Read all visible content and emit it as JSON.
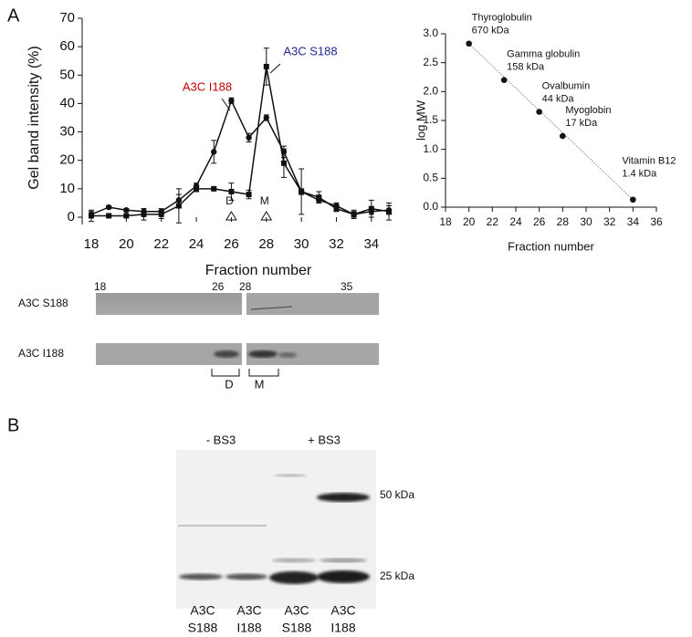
{
  "panels": {
    "a": "A",
    "b": "B"
  },
  "chart_data": [
    {
      "type": "line",
      "x": [
        18,
        19,
        20,
        21,
        22,
        23,
        24,
        25,
        26,
        27,
        28,
        29,
        30,
        31,
        32,
        33,
        34,
        35
      ],
      "series": [
        {
          "name": "A3C I188",
          "color": "#111111",
          "marker": "circle",
          "values": [
            1,
            3.5,
            2.5,
            2,
            2,
            6,
            11,
            23,
            41,
            28,
            35,
            23,
            9,
            6,
            4,
            1,
            2,
            2.5
          ],
          "errors": [
            1,
            0.5,
            0.5,
            1,
            1,
            2,
            1,
            4,
            1,
            1.5,
            1,
            2,
            1,
            1,
            1,
            1,
            1,
            1.5
          ]
        },
        {
          "name": "A3C S188",
          "color": "#111111",
          "marker": "square",
          "values": [
            0.5,
            0.5,
            0.5,
            1,
            1,
            4,
            10,
            10,
            9,
            8,
            53,
            19,
            9,
            7,
            3,
            1,
            3,
            2
          ],
          "errors": [
            2,
            0.5,
            0.5,
            2,
            1.5,
            6,
            1,
            0.5,
            3,
            1.5,
            6.5,
            5,
            8,
            2,
            1,
            1.5,
            3,
            3
          ]
        }
      ],
      "annotations": [
        {
          "text": "A3C I188",
          "color": "#c00000"
        },
        {
          "text": "A3C S188",
          "color": "#1f2a8f"
        }
      ],
      "markers": [
        {
          "text": "D",
          "x": 26
        },
        {
          "text": "M",
          "x": 28
        }
      ],
      "xlabel": "Fraction number",
      "ylabel": "Gel band intensity (%)",
      "xlim": [
        18,
        35
      ],
      "xticks": [
        18,
        20,
        22,
        24,
        26,
        28,
        30,
        32,
        34
      ],
      "ylim": [
        0,
        70
      ],
      "yticks": [
        0,
        10,
        20,
        30,
        40,
        50,
        60,
        70
      ]
    },
    {
      "type": "scatter",
      "x": [
        20,
        23,
        26,
        28,
        34
      ],
      "values": [
        2.83,
        2.2,
        1.65,
        1.23,
        0.13
      ],
      "point_labels": [
        [
          "Thyroglobulin",
          "670 kDa"
        ],
        [
          "Gamma globulin",
          "158 kDa"
        ],
        [
          "Ovalbumin",
          "44 kDa"
        ],
        [
          "Myoglobin",
          "17 kDa"
        ],
        [
          "Vitamin B12",
          "1.4 kDa"
        ]
      ],
      "color": "#111111",
      "xlabel": "Fraction number",
      "ylabel": "log MW",
      "xlim": [
        18,
        36
      ],
      "xticks": [
        18,
        20,
        22,
        24,
        26,
        28,
        30,
        32,
        34,
        36
      ],
      "ylim": [
        0,
        3
      ],
      "yticks": [
        {
          "value": 0,
          "label": "0.0"
        },
        {
          "value": 0.5,
          "label": "0.5"
        },
        {
          "value": 1,
          "label": "1.0"
        },
        {
          "value": 1.5,
          "label": "1.5"
        },
        {
          "value": 2,
          "label": "2.0"
        },
        {
          "value": 2.5,
          "label": "2.5"
        },
        {
          "value": 3,
          "label": "3.0"
        }
      ]
    }
  ],
  "gel_a": {
    "fractions": [
      "18",
      "26",
      "28",
      "35"
    ],
    "rows": [
      "A3C S188",
      "A3C I188"
    ],
    "brackets": [
      "D",
      "M"
    ]
  },
  "gel_b": {
    "conditions": [
      "- BS3",
      "+ BS3"
    ],
    "markers": [
      "50 kDa",
      "25 kDa"
    ],
    "lanes": [
      [
        "A3C",
        "S188"
      ],
      [
        "A3C",
        "I188"
      ],
      [
        "A3C",
        "S188"
      ],
      [
        "A3C",
        "I188"
      ]
    ]
  }
}
